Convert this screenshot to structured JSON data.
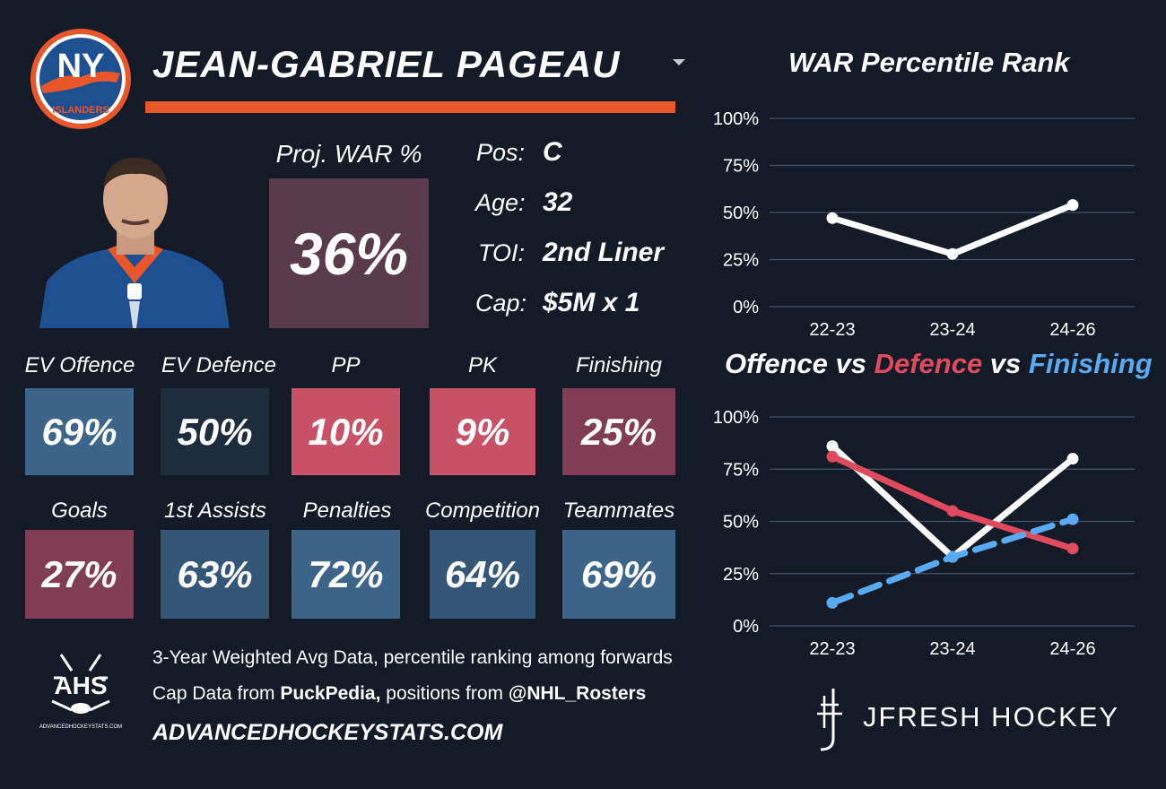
{
  "player": {
    "name": "JEAN-GABRIEL PAGEAU",
    "team_logo_text": "NY",
    "team_logo_subtext": "ISLANDERS"
  },
  "projection": {
    "label": "Proj. WAR %",
    "value": "36%",
    "color": "#5a3b4b"
  },
  "bio": [
    {
      "label": "Pos:",
      "value": "C"
    },
    {
      "label": "Age:",
      "value": "32"
    },
    {
      "label": "TOI:",
      "value": "2nd Liner"
    },
    {
      "label": "Cap:",
      "value": "$5M x 1"
    }
  ],
  "stats_row1": [
    {
      "label": "EV Offence",
      "value": "69%",
      "color": "#3d6589"
    },
    {
      "label": "EV Defence",
      "value": "50%",
      "color": "#1f2c3b"
    },
    {
      "label": "PP",
      "value": "10%",
      "color": "#c75266"
    },
    {
      "label": "PK",
      "value": "9%",
      "color": "#c75266"
    },
    {
      "label": "Finishing",
      "value": "25%",
      "color": "#803d54"
    }
  ],
  "stats_row2": [
    {
      "label": "Goals",
      "value": "27%",
      "color": "#803d54"
    },
    {
      "label": "1st Assists",
      "value": "63%",
      "color": "#345778"
    },
    {
      "label": "Penalties",
      "value": "72%",
      "color": "#3d6589"
    },
    {
      "label": "Competition",
      "value": "64%",
      "color": "#345778"
    },
    {
      "label": "Teammates",
      "value": "69%",
      "color": "#3d6589"
    }
  ],
  "footer": {
    "line1": "3-Year Weighted Avg Data, percentile ranking among forwards",
    "line2_prefix": "Cap Data from ",
    "line2_bold1": "PuckPedia,",
    "line2_mid": " positions from ",
    "line2_bold2": "@NHL_Rosters",
    "url": "ADVANCEDHOCKEYSTATS.COM",
    "ahs_logo_text": "AHS",
    "ahs_logo_subtext": "ADVANCEDHOCKEYSTATS.COM",
    "brand": "JFRESH HOCKEY"
  },
  "chart_titles": {
    "war": "WAR Percentile Rank",
    "ovd_offence": "Offence",
    "ovd_vs1": " vs ",
    "ovd_defence": "Defence",
    "ovd_vs2": " vs ",
    "ovd_finishing": "Finishing"
  },
  "colors": {
    "offence": "#ffffff",
    "defence": "#e04a5f",
    "finishing": "#5aaaf0",
    "grid": "#44546a",
    "accent": "#e8562a"
  },
  "chart_data": [
    {
      "type": "line",
      "title": "WAR Percentile Rank",
      "x": [
        "22-23",
        "23-24",
        "24-26"
      ],
      "yticks": [
        "0%",
        "25%",
        "50%",
        "75%",
        "100%"
      ],
      "ylim": [
        0,
        100
      ],
      "grid": true,
      "series": [
        {
          "values": [
            47,
            28,
            54
          ],
          "color": "#ffffff",
          "style": "solid"
        }
      ]
    },
    {
      "type": "line",
      "title": "Offence vs Defence vs Finishing",
      "x": [
        "22-23",
        "23-24",
        "24-26"
      ],
      "yticks": [
        "0%",
        "25%",
        "50%",
        "75%",
        "100%"
      ],
      "ylim": [
        0,
        100
      ],
      "grid": true,
      "series": [
        {
          "name": "Offence",
          "values": [
            86,
            33,
            80
          ],
          "color": "#ffffff",
          "style": "solid"
        },
        {
          "name": "Defence",
          "values": [
            81,
            55,
            37
          ],
          "color": "#e04a5f",
          "style": "solid"
        },
        {
          "name": "Finishing",
          "values": [
            11,
            33,
            51
          ],
          "color": "#5aaaf0",
          "style": "dashed"
        }
      ]
    }
  ]
}
